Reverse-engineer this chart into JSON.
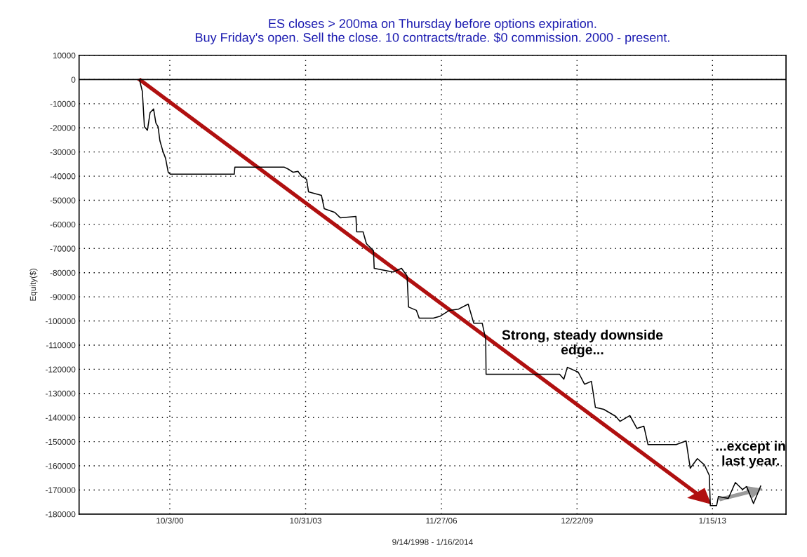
{
  "chart_data": {
    "type": "line",
    "title": "ES closes > 200ma on Thursday before options expiration.\nBuy Friday's open. Sell the close. 10 contracts/trade. $0 commission. 2000 - present.",
    "xlabel": "9/14/1998 - 1/16/2014",
    "ylabel": "Equity($)",
    "annotations": [
      "Strong, steady downside\nedge...",
      "...except in\nlast year."
    ],
    "series": [
      {
        "color": "#000000",
        "x": [
          "2000-01-26",
          "2000-02-19",
          "2000-03-07",
          "2000-04-01",
          "2000-04-23",
          "2000-05-22",
          "2000-06-10",
          "2000-06-28",
          "2000-07-13",
          "2000-08-07",
          "2000-08-29",
          "2000-09-20",
          "2000-10-08",
          "2002-03-20",
          "2002-03-25",
          "2003-05-08",
          "2003-06-06",
          "2003-07-20",
          "2003-08-29",
          "2003-09-27",
          "2003-11-08",
          "2003-11-24",
          "2004-03-10",
          "2004-04-02",
          "2004-06-28",
          "2004-08-14",
          "2004-12-20",
          "2004-12-26",
          "2005-02-17",
          "2005-03-17",
          "2005-05-14",
          "2005-05-20",
          "2005-10-23",
          "2006-01-01",
          "2006-02-16",
          "2006-02-28",
          "2006-05-04",
          "2006-05-27",
          "2006-09-21",
          "2006-11-17",
          "2007-02-01",
          "2007-04-17",
          "2007-07-06",
          "2007-08-21",
          "2007-10-30",
          "2007-11-28",
          "2007-12-01",
          "2009-07-31",
          "2009-09-04",
          "2009-10-03",
          "2010-01-01",
          "2010-02-22",
          "2010-04-20",
          "2010-05-23",
          "2010-07-31",
          "2010-11-07",
          "2010-12-13",
          "2011-03-04",
          "2011-05-01",
          "2011-06-28",
          "2011-08-01",
          "2012-03-21",
          "2012-06-11",
          "2012-07-15",
          "2012-09-12",
          "2012-11-09",
          "2012-12-20",
          "2012-12-28",
          "2013-02-18",
          "2013-03-05",
          "2013-05-26",
          "2013-07-23",
          "2013-09-20",
          "2013-10-24",
          "2013-12-20",
          "2014-02-18"
        ],
        "values": [
          0,
          -4900,
          -19500,
          -21000,
          -13700,
          -12200,
          -18000,
          -19500,
          -25300,
          -29700,
          -32600,
          -38400,
          -39200,
          -39200,
          -36300,
          -36300,
          -37000,
          -38400,
          -38000,
          -40000,
          -41300,
          -46500,
          -48000,
          -53500,
          -55000,
          -57300,
          -56700,
          -63100,
          -63100,
          -68000,
          -70900,
          -78200,
          -79700,
          -78200,
          -81400,
          -94200,
          -95600,
          -98800,
          -98800,
          -98000,
          -95600,
          -95100,
          -93000,
          -100900,
          -100900,
          -107600,
          -122100,
          -122100,
          -124100,
          -119200,
          -121200,
          -126200,
          -125000,
          -135800,
          -136600,
          -139500,
          -141600,
          -139200,
          -144500,
          -143600,
          -151200,
          -151200,
          -149700,
          -161000,
          -157000,
          -159600,
          -164000,
          -176500,
          -176500,
          -172700,
          -173500,
          -166900,
          -169800,
          -168600,
          -175600,
          -168300
        ]
      }
    ],
    "xlim": [
      "1998-09-14",
      "2014-09-15"
    ],
    "xticks": [
      {
        "value": "2000-10-03",
        "label": "10/3/00"
      },
      {
        "value": "2003-10-31",
        "label": "10/31/03"
      },
      {
        "value": "2006-11-27",
        "label": "11/27/06"
      },
      {
        "value": "2009-12-22",
        "label": "12/22/09"
      },
      {
        "value": "2013-01-15",
        "label": "1/15/13"
      }
    ],
    "ylim": [
      -180000,
      10000
    ],
    "yticks": [
      -180000,
      -170000,
      -160000,
      -150000,
      -140000,
      -130000,
      -120000,
      -110000,
      -100000,
      -90000,
      -80000,
      -70000,
      -60000,
      -50000,
      -40000,
      -30000,
      -20000,
      -10000,
      0,
      10000
    ],
    "ref_lines": [
      {
        "axis": "y",
        "value": 0,
        "color": "#000000",
        "line_style": "solid"
      }
    ],
    "grid": true,
    "legend": false,
    "marker": "none",
    "line_style": "solid"
  }
}
